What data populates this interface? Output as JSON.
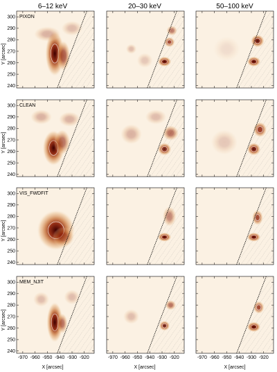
{
  "columns": [
    "6–12 keV",
    "20–30 keV",
    "50–100 keV"
  ],
  "methods": [
    "PIXON",
    "CLEAN",
    "VIS_FWDFIT",
    "MEM_NJIT"
  ],
  "y_axis_label": "Y [arcsec]",
  "x_axis_label": "X [arcsec]",
  "y_ticks": [
    "240",
    "250",
    "260",
    "270",
    "280",
    "290",
    "300"
  ],
  "x_ticks": [
    "-970",
    "-960",
    "-950",
    "-940",
    "-930",
    "-920"
  ],
  "colors": {
    "peak": "#3d0000",
    "high": "#8b1a00",
    "mid": "#c46a2c",
    "low": "#e8b987",
    "faint": "#f7e4cc",
    "limb": "#000000",
    "contour": "#ffffff"
  },
  "chart_data": {
    "type": "heatmap",
    "title": "",
    "xlabel": "X [arcsec]",
    "ylabel": "Y [arcsec]",
    "xlim": [
      -975,
      -912
    ],
    "ylim": [
      238,
      305
    ],
    "rows": [
      "PIXON",
      "CLEAN",
      "VIS_FWDFIT",
      "MEM_NJIT"
    ],
    "cols": [
      "6–12 keV",
      "20–30 keV",
      "50–100 keV"
    ],
    "panels": [
      [
        {
          "sources": [
            {
              "x": -944,
              "y": 268,
              "sx": 3.5,
              "sy": 9,
              "a": 1.0
            },
            {
              "x": -937,
              "y": 266,
              "sx": 2.5,
              "sy": 6,
              "a": 0.7
            },
            {
              "x": -950,
              "y": 285,
              "sx": 5,
              "sy": 3,
              "a": 0.3
            },
            {
              "x": -930,
              "y": 290,
              "sx": 4,
              "sy": 3,
              "a": 0.25
            }
          ]
        },
        {
          "sources": [
            {
              "x": -928,
              "y": 261,
              "sx": 2.5,
              "sy": 2,
              "a": 1.0
            },
            {
              "x": -924,
              "y": 278,
              "sx": 2,
              "sy": 2,
              "a": 0.8
            },
            {
              "x": -922,
              "y": 288,
              "sx": 2,
              "sy": 2,
              "a": 0.55
            },
            {
              "x": -955,
              "y": 272,
              "sx": 2,
              "sy": 2,
              "a": 0.25
            },
            {
              "x": -944,
              "y": 262,
              "sx": 3,
              "sy": 3,
              "a": 0.2
            }
          ]
        },
        {
          "sources": [
            {
              "x": -928,
              "y": 261,
              "sx": 2.5,
              "sy": 2,
              "a": 1.0
            },
            {
              "x": -925,
              "y": 279,
              "sx": 2.5,
              "sy": 2.5,
              "a": 0.95
            },
            {
              "x": -950,
              "y": 272,
              "sx": 5,
              "sy": 5,
              "a": 0.1
            }
          ]
        }
      ],
      [
        {
          "sources": [
            {
              "x": -945,
              "y": 263,
              "sx": 4,
              "sy": 7,
              "a": 1.0
            },
            {
              "x": -938,
              "y": 268,
              "sx": 3,
              "sy": 5,
              "a": 0.6
            },
            {
              "x": -955,
              "y": 290,
              "sx": 4,
              "sy": 3,
              "a": 0.3
            },
            {
              "x": -932,
              "y": 288,
              "sx": 4,
              "sy": 3,
              "a": 0.3
            }
          ]
        },
        {
          "sources": [
            {
              "x": -928,
              "y": 262,
              "sx": 2.5,
              "sy": 2.5,
              "a": 0.9
            },
            {
              "x": -923,
              "y": 276,
              "sx": 3,
              "sy": 3,
              "a": 0.6
            },
            {
              "x": -955,
              "y": 275,
              "sx": 4,
              "sy": 4,
              "a": 0.3
            },
            {
              "x": -935,
              "y": 290,
              "sx": 4,
              "sy": 3,
              "a": 0.25
            }
          ]
        },
        {
          "sources": [
            {
              "x": -928,
              "y": 262,
              "sx": 2.5,
              "sy": 2.5,
              "a": 0.95
            },
            {
              "x": -923,
              "y": 279,
              "sx": 2.5,
              "sy": 3,
              "a": 0.85
            },
            {
              "x": -952,
              "y": 268,
              "sx": 5,
              "sy": 5,
              "a": 0.2
            }
          ]
        }
      ],
      [
        {
          "sources": [
            {
              "x": -943,
              "y": 268,
              "sx": 7,
              "sy": 8,
              "a": 1.0
            },
            {
              "x": -937,
              "y": 262,
              "sx": 4,
              "sy": 4,
              "a": 0.5
            }
          ]
        },
        {
          "sources": [
            {
              "x": -928,
              "y": 262,
              "sx": 2.5,
              "sy": 1.8,
              "a": 1.0
            },
            {
              "x": -924,
              "y": 280,
              "sx": 2.5,
              "sy": 4,
              "a": 0.5
            }
          ]
        },
        {
          "sources": [
            {
              "x": -928,
              "y": 262,
              "sx": 2.5,
              "sy": 1.8,
              "a": 1.0
            },
            {
              "x": -925,
              "y": 279,
              "sx": 2,
              "sy": 3,
              "a": 0.8
            }
          ]
        }
      ],
      [
        {
          "sources": [
            {
              "x": -944,
              "y": 265,
              "sx": 3,
              "sy": 8,
              "a": 1.0
            },
            {
              "x": -938,
              "y": 264,
              "sx": 2,
              "sy": 4,
              "a": 0.6
            },
            {
              "x": -955,
              "y": 285,
              "sx": 3,
              "sy": 3,
              "a": 0.25
            },
            {
              "x": -930,
              "y": 287,
              "sx": 3,
              "sy": 3,
              "a": 0.25
            }
          ]
        },
        {
          "sources": [
            {
              "x": -928,
              "y": 262,
              "sx": 2,
              "sy": 2,
              "a": 0.9
            },
            {
              "x": -923,
              "y": 280,
              "sx": 2,
              "sy": 2,
              "a": 0.6
            },
            {
              "x": -955,
              "y": 270,
              "sx": 3,
              "sy": 3,
              "a": 0.25
            }
          ]
        },
        {
          "sources": [
            {
              "x": -928,
              "y": 261,
              "sx": 2.5,
              "sy": 2,
              "a": 1.0
            },
            {
              "x": -924,
              "y": 278,
              "sx": 2,
              "sy": 2.5,
              "a": 0.8
            }
          ]
        }
      ]
    ],
    "limb_line": {
      "x1": -942,
      "y1": 238,
      "x2": -918,
      "y2": 305
    },
    "grid": false
  }
}
